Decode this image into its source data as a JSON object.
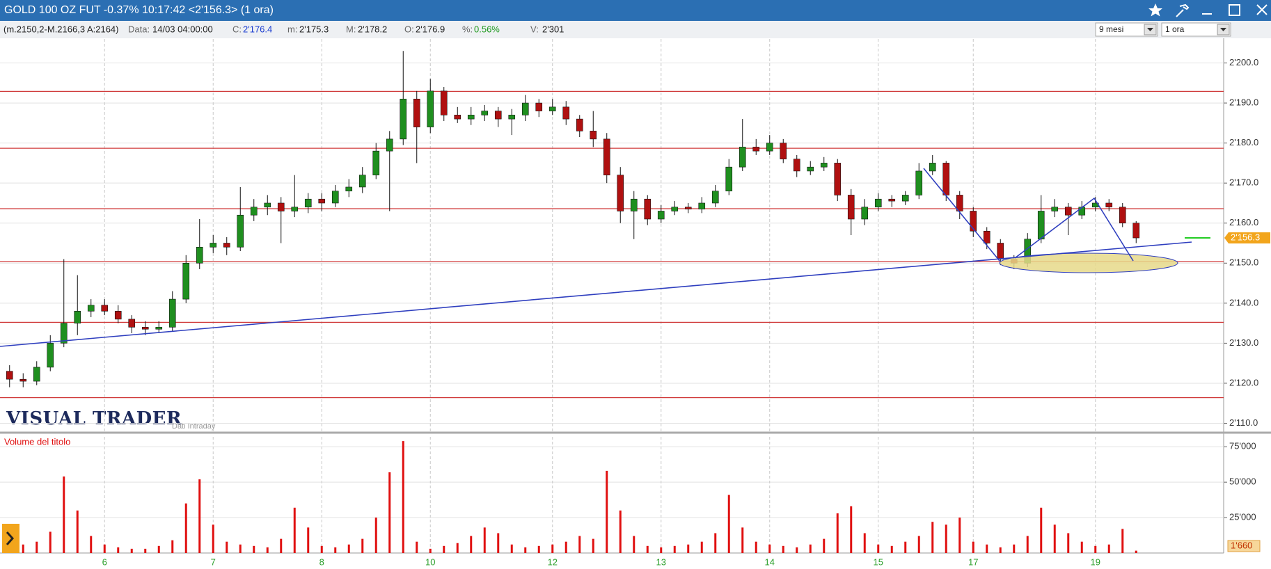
{
  "window": {
    "title": "GOLD 100 OZ FUT -0.37% 10:17:42  <2'156.3> (1 ora)",
    "info": [
      "(m.2150,2-M.2166,3 A:2164)",
      "Data:",
      "14/03 04:00:00",
      "C:",
      "2'176.4",
      "m:",
      "2'175.3",
      "M:",
      "2'178.2",
      "O:",
      "2'176.9",
      "%:",
      "0.56%",
      "V:",
      "2'301"
    ],
    "period": "9 mesi",
    "interval": "1 ora",
    "brand": "VISUAL TRADER",
    "brand_note": "Dati Intraday"
  },
  "chart_data": [
    {
      "type": "candlestick",
      "categories": [
        null,
        null,
        null,
        null,
        null,
        null,
        null,
        "6",
        null,
        null,
        null,
        null,
        null,
        null,
        null,
        "7",
        null,
        null,
        null,
        null,
        null,
        null,
        null,
        "8",
        null,
        null,
        null,
        null,
        null,
        null,
        null,
        "10",
        null,
        null,
        null,
        null,
        null,
        null,
        null,
        null,
        "12",
        null,
        null,
        null,
        null,
        null,
        null,
        null,
        "13",
        null,
        null,
        null,
        null,
        null,
        null,
        null,
        "14",
        null,
        null,
        null,
        null,
        null,
        null,
        null,
        "15",
        null,
        null,
        null,
        null,
        null,
        null,
        "17",
        null,
        null,
        null,
        null,
        null,
        null,
        null,
        null,
        "19",
        null,
        null,
        null
      ],
      "open": [
        2123,
        2121,
        2120.5,
        2124,
        2130,
        2135,
        2138,
        2139.5,
        2138,
        2136,
        2134,
        2133.5,
        2134,
        2141,
        2150,
        2154,
        2155,
        2154,
        2162,
        2164,
        2165,
        2163,
        2164,
        2166,
        2165,
        2168,
        2169,
        2172,
        2178,
        2181,
        2191,
        2184,
        2193,
        2187,
        2186,
        2187,
        2188,
        2186,
        2187,
        2190,
        2188,
        2189,
        2186,
        2183,
        2181,
        2172,
        2163,
        2166,
        2161,
        2163,
        2164,
        2163.5,
        2165,
        2168,
        2174,
        2179,
        2178,
        2180,
        2176,
        2173,
        2174,
        2175,
        2167,
        2161,
        2164,
        2166,
        2165.5,
        2167,
        2173,
        2175,
        2167,
        2163,
        2158,
        2155,
        2151,
        2150,
        2156,
        2163,
        2164,
        2162,
        2164,
        2165,
        2164,
        2160
      ],
      "high": [
        2124.5,
        2122.5,
        2125.5,
        2132,
        2151,
        2147,
        2141,
        2141,
        2139.5,
        2137,
        2135.5,
        2135.5,
        2143,
        2152,
        2161,
        2157,
        2156.5,
        2169,
        2166,
        2167,
        2166.5,
        2172,
        2167.5,
        2167.5,
        2169.5,
        2171,
        2174,
        2180,
        2183,
        2203,
        2193,
        2196,
        2194,
        2189,
        2189,
        2189.5,
        2189,
        2188.5,
        2192,
        2191,
        2191,
        2190.5,
        2187,
        2188,
        2182.5,
        2174,
        2168,
        2167,
        2164.5,
        2165.5,
        2165,
        2166.5,
        2169.5,
        2176,
        2186,
        2181,
        2182,
        2181,
        2177,
        2175.5,
        2176.5,
        2176,
        2168.5,
        2166,
        2167.5,
        2167,
        2168,
        2175,
        2177,
        2175.5,
        2168,
        2164,
        2159,
        2156,
        2152,
        2157.5,
        2167,
        2166,
        2165,
        2165.5,
        2166.5,
        2166,
        2165,
        2160.5
      ],
      "low": [
        2119,
        2119,
        2119.5,
        2123,
        2129,
        2132,
        2136.5,
        2137,
        2135,
        2132.5,
        2132,
        2132.5,
        2133,
        2140,
        2148.5,
        2152.5,
        2152,
        2153,
        2160.5,
        2162,
        2155,
        2161.5,
        2162.5,
        2163,
        2164,
        2166.5,
        2167.5,
        2171,
        2163,
        2179.5,
        2175,
        2182.5,
        2185.5,
        2185,
        2184.5,
        2185.5,
        2184,
        2182,
        2185.5,
        2186.5,
        2187,
        2184.5,
        2181.5,
        2179,
        2170,
        2160,
        2156,
        2159.5,
        2160,
        2162,
        2162.5,
        2162.5,
        2164,
        2167,
        2173,
        2177,
        2177,
        2175,
        2171.5,
        2172,
        2173,
        2165.5,
        2157,
        2159.5,
        2163,
        2164,
        2164.5,
        2166,
        2172,
        2165.5,
        2161,
        2156.5,
        2153.5,
        2149.5,
        2148.5,
        2149,
        2155,
        2161.5,
        2157,
        2161,
        2163,
        2163,
        2159,
        2155
      ],
      "close": [
        2121,
        2120.5,
        2124,
        2130,
        2135,
        2138,
        2139.5,
        2138,
        2136,
        2134,
        2133.5,
        2134,
        2141,
        2150,
        2154,
        2155,
        2154,
        2162,
        2164,
        2165,
        2163,
        2164,
        2166,
        2165,
        2168,
        2169,
        2172,
        2178,
        2181,
        2191,
        2184,
        2193,
        2187,
        2186,
        2187,
        2188,
        2186,
        2187,
        2190,
        2188,
        2189,
        2186,
        2183,
        2181,
        2172,
        2163,
        2166,
        2161,
        2163,
        2164,
        2163.5,
        2165,
        2168,
        2174,
        2179,
        2178,
        2180,
        2176,
        2173,
        2174,
        2175,
        2167,
        2161,
        2164,
        2166,
        2165.5,
        2167,
        2173,
        2175,
        2167,
        2163,
        2158,
        2155,
        2151,
        2150,
        2156,
        2163,
        2164,
        2162,
        2164,
        2165,
        2164,
        2160,
        2156.3
      ],
      "up_color": "#1f8f1f",
      "down_color": "#b01010",
      "ylim": [
        2108,
        2206
      ],
      "yticks": [
        {
          "value": 2110,
          "label": "2'110.0"
        },
        {
          "value": 2120,
          "label": "2'120.0"
        },
        {
          "value": 2130,
          "label": "2'130.0"
        },
        {
          "value": 2140,
          "label": "2'140.0"
        },
        {
          "value": 2150,
          "label": "2'150.0"
        },
        {
          "value": 2160,
          "label": "2'160.0"
        },
        {
          "value": 2170,
          "label": "2'170.0"
        },
        {
          "value": 2180,
          "label": "2'180.0"
        },
        {
          "value": 2190,
          "label": "2'190.0"
        },
        {
          "value": 2200,
          "label": "2'200.0"
        }
      ],
      "grid": true,
      "levels": [
        2192.9,
        2178.7,
        2163.6,
        2150.4,
        2135.2,
        2116.4
      ],
      "level_color": "#d03a3a",
      "last_label": "2'156.3"
    },
    {
      "type": "bar",
      "title": "Volume del titolo",
      "values": [
        4000,
        6000,
        8000,
        15000,
        54000,
        30000,
        12000,
        6000,
        4000,
        3000,
        3000,
        5000,
        9000,
        35000,
        52000,
        20000,
        8000,
        6000,
        5000,
        4000,
        10000,
        32000,
        18000,
        5000,
        4000,
        6000,
        10000,
        25000,
        57000,
        79000,
        8000,
        3000,
        5000,
        7000,
        12000,
        18000,
        14000,
        6000,
        4000,
        5000,
        6000,
        8000,
        12000,
        10000,
        58000,
        30000,
        12000,
        5000,
        4000,
        5000,
        6000,
        8000,
        14000,
        41000,
        18000,
        8000,
        6000,
        5000,
        4000,
        6000,
        10000,
        28000,
        33000,
        14000,
        6000,
        5000,
        8000,
        12000,
        22000,
        20000,
        25000,
        8000,
        6000,
        4000,
        6000,
        12000,
        32000,
        20000,
        14000,
        8000,
        5000,
        6000,
        17000,
        1660
      ],
      "color": "#e01010",
      "ylim": [
        0,
        82000
      ],
      "yticks": [
        {
          "value": 25000,
          "label": "25'000"
        },
        {
          "value": 50000,
          "label": "50'000"
        },
        {
          "value": 75000,
          "label": "75'000"
        }
      ],
      "grid": true,
      "last_label": "1'660"
    }
  ]
}
